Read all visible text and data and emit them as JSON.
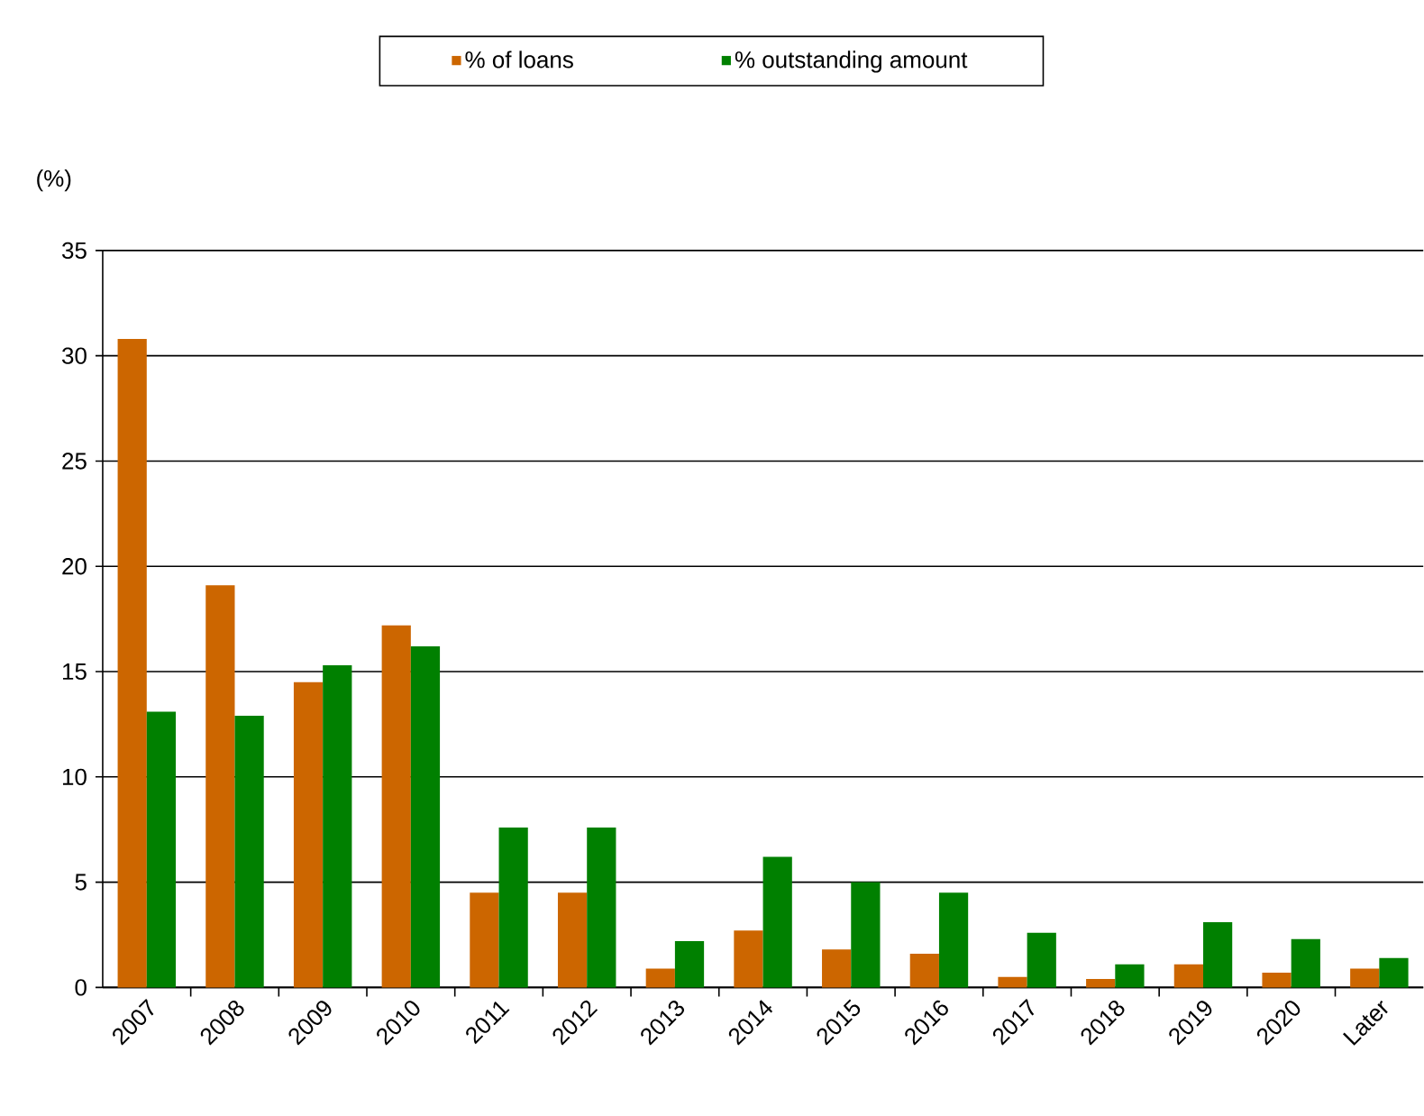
{
  "chart_data": {
    "type": "bar",
    "ylabel": "(%)",
    "categories": [
      "2007",
      "2008",
      "2009",
      "2010",
      "2011",
      "2012",
      "2013",
      "2014",
      "2015",
      "2016",
      "2017",
      "2018",
      "2019",
      "2020",
      "Later"
    ],
    "series": [
      {
        "name": "% of loans",
        "color": "#cc6600",
        "values": [
          30.8,
          19.1,
          14.5,
          17.2,
          4.5,
          4.5,
          0.9,
          2.7,
          1.8,
          1.6,
          0.5,
          0.4,
          1.1,
          0.7,
          0.9
        ]
      },
      {
        "name": "% outstanding amount",
        "color": "#008000",
        "values": [
          13.1,
          12.9,
          15.3,
          16.2,
          7.6,
          7.6,
          2.2,
          6.2,
          5.0,
          4.5,
          2.6,
          1.1,
          3.1,
          2.3,
          1.4
        ]
      }
    ],
    "ylim": [
      0,
      35
    ],
    "yticks": [
      0,
      5,
      10,
      15,
      20,
      25,
      30,
      35
    ],
    "grid": "y",
    "legend": "top"
  }
}
